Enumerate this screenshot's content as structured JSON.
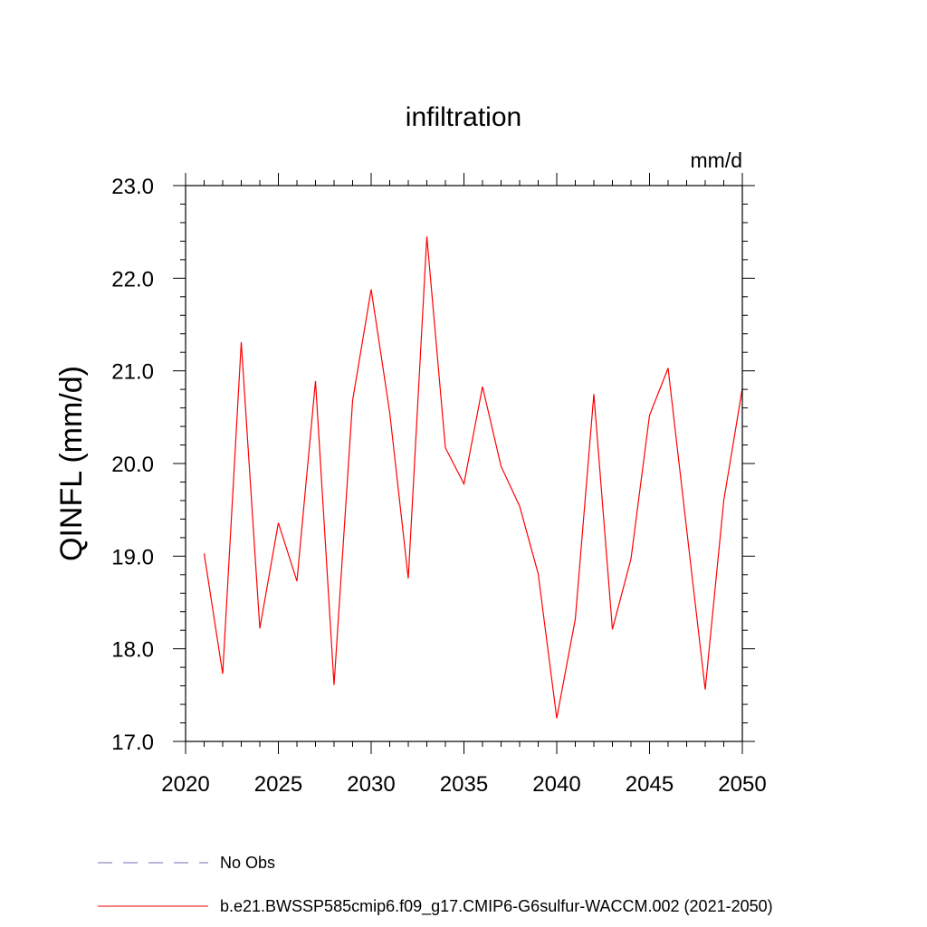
{
  "chart_data": {
    "type": "line",
    "title": "infiltration",
    "units": "mm/d",
    "ylabel": "QINFL  (mm/d)",
    "xlabel": "",
    "xlim": [
      2020,
      2050
    ],
    "ylim": [
      17.0,
      23.0
    ],
    "x_ticks": [
      2020,
      2025,
      2030,
      2035,
      2040,
      2045,
      2050
    ],
    "y_ticks": [
      "17.0",
      "18.0",
      "19.0",
      "20.0",
      "21.0",
      "22.0",
      "23.0"
    ],
    "grid": false,
    "legend_position": "bottom",
    "series": [
      {
        "name": "b.e21.BWSSP585cmip6.f09_g17.CMIP6-G6sulfur-WACCM.002 (2021-2050)",
        "color": "#ff0000",
        "style": "solid",
        "x": [
          2021,
          2022,
          2023,
          2024,
          2025,
          2026,
          2027,
          2028,
          2029,
          2030,
          2031,
          2032,
          2033,
          2034,
          2035,
          2036,
          2037,
          2038,
          2039,
          2040,
          2041,
          2042,
          2043,
          2044,
          2045,
          2046,
          2047,
          2048,
          2049,
          2050
        ],
        "values": [
          19.03,
          17.73,
          21.31,
          18.22,
          19.36,
          18.73,
          20.89,
          17.61,
          20.68,
          21.88,
          20.55,
          18.76,
          22.45,
          20.17,
          19.78,
          20.83,
          19.97,
          19.54,
          18.81,
          17.25,
          18.32,
          20.75,
          18.21,
          18.97,
          20.52,
          21.03,
          19.29,
          17.56,
          19.6,
          20.81
        ]
      }
    ],
    "legend": [
      {
        "label": "No Obs",
        "color": "#7b68b3",
        "style": "dashed"
      },
      {
        "label": "b.e21.BWSSP585cmip6.f09_g17.CMIP6-G6sulfur-WACCM.002 (2021-2050)",
        "color": "#ff0000",
        "style": "solid"
      }
    ]
  }
}
